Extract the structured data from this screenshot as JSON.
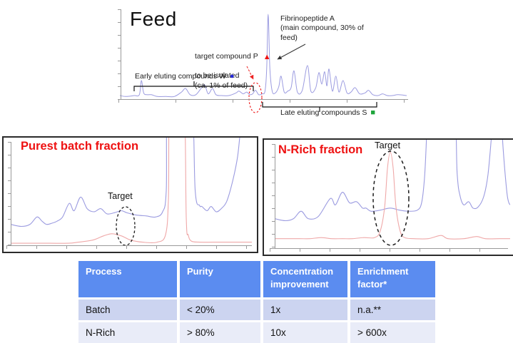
{
  "slide": {
    "feed": {
      "title": "Feed",
      "main_peak_note": "Fibrinopeptide  A\n(main compound, 30% of\nfeed)",
      "target_note_line1": "target compound P",
      "target_note_rest": "to be isolated\n(ca. 1% of feed)",
      "early_label": "Early eluting compounds W",
      "late_label": "Late eluting compounds S"
    },
    "panels": [
      {
        "title": "Purest batch fraction",
        "target_label": "Target"
      },
      {
        "title": "N-Rich fraction",
        "target_label": "Target"
      }
    ],
    "table": {
      "headers": [
        "Process",
        "Purity",
        "Concentration improvement",
        "Enrichment factor*"
      ],
      "rows": [
        [
          "Batch",
          "< 20%",
          "1x",
          "n.a.**"
        ],
        [
          "N-Rich",
          "> 80%",
          "10x",
          "> 600x"
        ]
      ]
    },
    "icons": {
      "target_marker": "▲",
      "early_marker": "●",
      "late_marker": "■"
    },
    "colors": {
      "annotation_red": "#ee1111",
      "marker_blue": "#2427d6",
      "marker_green": "#1fa53c",
      "table_header_blue": "#5b8cf0",
      "table_row_light": "#ccd4f0",
      "table_row_lighter": "#e9ecf8",
      "trace_blue": "#9b9be0",
      "trace_red": "#efa8a8"
    }
  },
  "chart_data": [
    {
      "id": "feed-chromatogram",
      "type": "line",
      "title": "Feed",
      "xlabel": "",
      "ylabel": "",
      "x_range": [
        0,
        100
      ],
      "y_range": [
        0,
        100
      ],
      "units": "normalized percent of plot area (axis tick labels illegible in source)",
      "annotations": [
        "Fibrinopeptide A (main compound, 30% of feed) — tallest peak at x≈52",
        "target compound P to be isolated (ca. 1% of feed) — small circled peak at x≈47",
        "Early eluting compounds W — bracket x≈5-47",
        "Late eluting compounds S — bracket x≈50-90"
      ],
      "series": [
        {
          "name": "feed UV trace",
          "color": "#9b9be0",
          "points": [
            [
              0,
              4
            ],
            [
              2,
              3
            ],
            [
              5,
              4
            ],
            [
              6.8,
              5
            ],
            [
              7.5,
              21
            ],
            [
              8.3,
              7
            ],
            [
              9.5,
              5
            ],
            [
              11,
              5
            ],
            [
              13,
              3
            ],
            [
              16,
              3
            ],
            [
              19,
              3
            ],
            [
              21.5,
              8
            ],
            [
              22.9,
              12
            ],
            [
              24.5,
              5
            ],
            [
              26.5,
              5
            ],
            [
              28.5,
              13
            ],
            [
              29.6,
              16
            ],
            [
              30.8,
              6
            ],
            [
              32.3,
              12
            ],
            [
              33.5,
              5
            ],
            [
              35.5,
              4
            ],
            [
              38,
              4
            ],
            [
              40.5,
              7
            ],
            [
              41.5,
              9
            ],
            [
              43,
              6
            ],
            [
              44.2,
              8
            ],
            [
              45.3,
              5
            ],
            [
              46.3,
              6
            ],
            [
              47.3,
              10
            ],
            [
              48.4,
              5
            ],
            [
              49.6,
              6
            ],
            [
              50.6,
              9
            ],
            [
              51.2,
              35
            ],
            [
              51.7,
              96
            ],
            [
              52.3,
              35
            ],
            [
              53.1,
              9
            ],
            [
              54.2,
              7
            ],
            [
              55.4,
              14
            ],
            [
              56.2,
              26
            ],
            [
              57.3,
              8
            ],
            [
              58.5,
              9
            ],
            [
              59.7,
              13
            ],
            [
              60.7,
              32
            ],
            [
              61.9,
              8
            ],
            [
              63.6,
              10
            ],
            [
              65.4,
              38
            ],
            [
              66.6,
              9
            ],
            [
              68.3,
              13
            ],
            [
              69.4,
              30
            ],
            [
              70.4,
              17
            ],
            [
              71.4,
              31
            ],
            [
              72.2,
              15
            ],
            [
              72.9,
              34
            ],
            [
              74.1,
              9
            ],
            [
              75.3,
              26
            ],
            [
              76.4,
              8
            ],
            [
              77.8,
              21
            ],
            [
              79.2,
              7
            ],
            [
              80.6,
              8
            ],
            [
              82,
              13
            ],
            [
              83.6,
              6
            ],
            [
              85.5,
              7
            ],
            [
              86.7,
              10
            ],
            [
              88.2,
              5
            ],
            [
              90,
              4
            ],
            [
              91.6,
              6
            ],
            [
              93.2,
              4
            ],
            [
              95,
              4
            ],
            [
              97,
              5
            ],
            [
              100,
              4
            ]
          ]
        }
      ]
    },
    {
      "id": "purest-batch-fraction",
      "type": "line",
      "title": "Purest batch fraction",
      "xlabel": "",
      "ylabel": "",
      "x_range": [
        0,
        100
      ],
      "y_range": [
        0,
        100
      ],
      "units": "normalized percent of plot area; values >100 are off-scale peaks",
      "annotations": [
        "Target — dashed ellipse around small bump at x≈47"
      ],
      "series": [
        {
          "name": "crude trace",
          "color": "#9b9be0",
          "points": [
            [
              0,
              20
            ],
            [
              4.4,
              18
            ],
            [
              8,
              20
            ],
            [
              10.9,
              27
            ],
            [
              13,
              23
            ],
            [
              14.8,
              20
            ],
            [
              17,
              21
            ],
            [
              19.2,
              23
            ],
            [
              21.5,
              27
            ],
            [
              24.3,
              40
            ],
            [
              26.3,
              33
            ],
            [
              29,
              46
            ],
            [
              31.7,
              35
            ],
            [
              34.6,
              32
            ],
            [
              37.3,
              35
            ],
            [
              39.9,
              30
            ],
            [
              42.9,
              31
            ],
            [
              45.9,
              33
            ],
            [
              48.2,
              31
            ],
            [
              51.8,
              29
            ],
            [
              56.2,
              28
            ],
            [
              60.1,
              27
            ],
            [
              63,
              32
            ],
            [
              64.5,
              52
            ],
            [
              65.6,
              150
            ],
            [
              74.5,
              150
            ],
            [
              76.5,
              52
            ],
            [
              78.3,
              38
            ],
            [
              79.3,
              37
            ],
            [
              81.4,
              33
            ],
            [
              83.1,
              37
            ],
            [
              85.2,
              32
            ],
            [
              87.3,
              35
            ],
            [
              89.6,
              42
            ],
            [
              92,
              61
            ],
            [
              94.1,
              85
            ],
            [
              95.6,
              120
            ],
            [
              96.5,
              150
            ],
            [
              100,
              150
            ]
          ]
        },
        {
          "name": "fraction trace",
          "color": "#efa8a8",
          "points": [
            [
              0,
              2
            ],
            [
              8,
              2
            ],
            [
              16,
              2
            ],
            [
              24,
              2
            ],
            [
              28.1,
              3
            ],
            [
              34,
              5
            ],
            [
              38.5,
              9
            ],
            [
              42,
              11
            ],
            [
              45.9,
              9
            ],
            [
              49.7,
              5
            ],
            [
              54.7,
              3
            ],
            [
              60.7,
              3
            ],
            [
              64.2,
              10
            ],
            [
              65.4,
              45
            ],
            [
              66.2,
              150
            ],
            [
              71.6,
              150
            ],
            [
              72.8,
              25
            ],
            [
              73.6,
              10
            ],
            [
              74.9,
              4
            ],
            [
              78.4,
              3
            ],
            [
              84,
              3
            ],
            [
              90,
              3
            ],
            [
              95,
              3
            ],
            [
              100,
              3
            ]
          ]
        }
      ]
    },
    {
      "id": "n-rich-fraction",
      "type": "line",
      "title": "N-Rich fraction",
      "xlabel": "",
      "ylabel": "",
      "x_range": [
        0,
        100
      ],
      "y_range": [
        0,
        100
      ],
      "units": "normalized percent of plot area; values >100 are off-scale peaks",
      "annotations": [
        "Target — dashed ellipse around tall red peak at x≈49"
      ],
      "series": [
        {
          "name": "crude trace",
          "color": "#9b9be0",
          "points": [
            [
              0,
              28
            ],
            [
              4.5,
              26
            ],
            [
              8,
              28
            ],
            [
              11.2,
              35
            ],
            [
              14.2,
              28
            ],
            [
              18.5,
              30
            ],
            [
              23.6,
              47
            ],
            [
              25.8,
              41
            ],
            [
              28.8,
              53
            ],
            [
              31.8,
              43
            ],
            [
              34.8,
              44
            ],
            [
              37.3,
              38
            ],
            [
              38.8,
              38
            ],
            [
              40.9,
              35
            ],
            [
              44.8,
              36
            ],
            [
              49.1,
              38
            ],
            [
              53,
              36
            ],
            [
              56.7,
              35
            ],
            [
              60.6,
              36
            ],
            [
              62.4,
              43
            ],
            [
              63.6,
              66
            ],
            [
              64.4,
              100
            ],
            [
              65.2,
              150
            ],
            [
              75.5,
              150
            ],
            [
              77.5,
              70
            ],
            [
              78.8,
              49
            ],
            [
              80.3,
              41
            ],
            [
              82.4,
              44
            ],
            [
              84.2,
              38
            ],
            [
              86.4,
              39
            ],
            [
              88.8,
              49
            ],
            [
              90.6,
              70
            ],
            [
              92.2,
              110
            ],
            [
              93.5,
              150
            ],
            [
              95.5,
              150
            ],
            [
              97,
              95
            ],
            [
              98.5,
              55
            ],
            [
              99.3,
              44
            ],
            [
              100,
              41
            ]
          ]
        },
        {
          "name": "fraction trace",
          "color": "#efa8a8",
          "points": [
            [
              0,
              9
            ],
            [
              5,
              9
            ],
            [
              10.6,
              9
            ],
            [
              15,
              9
            ],
            [
              19.7,
              10
            ],
            [
              24,
              9
            ],
            [
              28.8,
              9
            ],
            [
              33,
              9
            ],
            [
              37.9,
              10
            ],
            [
              42.4,
              10
            ],
            [
              44.8,
              16
            ],
            [
              46.7,
              39
            ],
            [
              47.9,
              76
            ],
            [
              49.1,
              91
            ],
            [
              50.3,
              76
            ],
            [
              51.5,
              39
            ],
            [
              53.3,
              16
            ],
            [
              55.2,
              10
            ],
            [
              59.1,
              9
            ],
            [
              65.2,
              9
            ],
            [
              70.6,
              12
            ],
            [
              73.6,
              9
            ],
            [
              80.3,
              9
            ],
            [
              85.8,
              11
            ],
            [
              89.4,
              9
            ],
            [
              95.5,
              9
            ],
            [
              100,
              9
            ]
          ]
        }
      ]
    }
  ]
}
